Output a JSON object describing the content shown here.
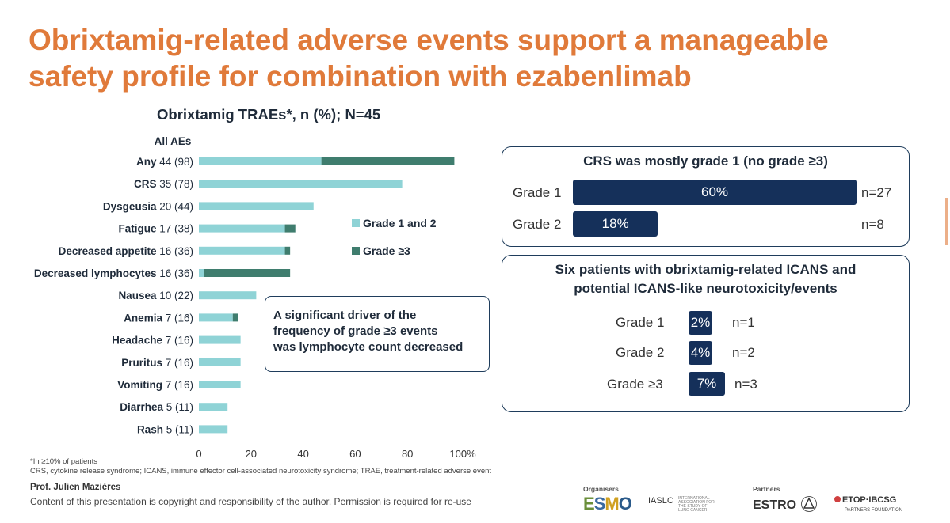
{
  "slide": {
    "title": "Obrixtamig-related adverse events support a manageable safety profile for combination with ezabenlimab"
  },
  "chart_data": {
    "type": "bar",
    "orientation": "horizontal",
    "stacked": true,
    "title": "Obrixtamig TRAEs*, n (%); N=45",
    "column_header": "All AEs",
    "categories": [
      "Any",
      "CRS",
      "Dysgeusia",
      "Fatigue",
      "Decreased appetite",
      "Decreased lymphocytes",
      "Nausea",
      "Anemia",
      "Headache",
      "Pruritus",
      "Vomiting",
      "Diarrhea",
      "Rash"
    ],
    "category_counts": [
      "44 (98)",
      "35 (78)",
      "20 (44)",
      "17 (38)",
      "16 (36)",
      "16 (36)",
      "10 (22)",
      "7 (16)",
      "7 (16)",
      "7 (16)",
      "7 (16)",
      "5 (11)",
      "5 (11)"
    ],
    "series": [
      {
        "name": "Grade 1 and 2",
        "color": "#8fd3d6",
        "values": [
          47,
          78,
          44,
          33,
          33,
          2,
          22,
          13,
          16,
          16,
          16,
          11,
          11
        ]
      },
      {
        "name": "Grade ≥3",
        "color": "#3f7d6e",
        "values": [
          51,
          0,
          0,
          4,
          2,
          33,
          0,
          2,
          0,
          0,
          0,
          0,
          0
        ]
      }
    ],
    "x_ticks": [
      "0",
      "20",
      "40",
      "60",
      "80",
      "100%"
    ],
    "xlim": [
      0,
      100
    ]
  },
  "driver_box": {
    "lines": [
      "A significant driver of the",
      "frequency of grade ≥3 events",
      "was lymphocyte count decreased"
    ]
  },
  "crs_panel": {
    "title": "CRS was mostly grade 1 (no grade ≥3)",
    "rows": [
      {
        "label": "Grade 1",
        "percent": 60,
        "percent_text": "60%",
        "n": "n=27"
      },
      {
        "label": "Grade 2",
        "percent": 18,
        "percent_text": "18%",
        "n": "n=8"
      }
    ]
  },
  "icans_panel": {
    "title_line1": "Six patients with obrixtamig-related ICANS and",
    "title_line2": "potential ICANS-like neurotoxicity/events",
    "rows": [
      {
        "label": "Grade 1",
        "percent": 2,
        "percent_text": "2%",
        "n": "n=1"
      },
      {
        "label": "Grade 2",
        "percent": 4,
        "percent_text": "4%",
        "n": "n=2"
      },
      {
        "label": "Grade ≥3",
        "percent": 7,
        "percent_text": "7%",
        "n": "n=3"
      }
    ]
  },
  "footnotes": {
    "line1": "*In ≥10% of patients",
    "line2": "CRS, cytokine release syndrome; ICANS, immune effector cell-associated neurotoxicity syndrome; TRAE, treatment-related adverse event"
  },
  "footer": {
    "presenter": "Prof. Julien Mazières",
    "copyright": "Content of this presentation is copyright and responsibility of the author. Permission is required for re-use",
    "organisers_label": "Organisers",
    "partners_label": "Partners",
    "esmo": "ESMO",
    "iaslc": "IASLC",
    "iaslc_sub": "INTERNATIONAL ASSOCIATION FOR THE STUDY OF LUNG CANCER",
    "estro": "ESTRO",
    "etop": "ETOP·IBCSG",
    "etop_sub": "PARTNERS FOUNDATION"
  },
  "colors": {
    "accent": "#e07a3a",
    "navy": "#15305a",
    "grade12": "#8fd3d6",
    "grade3": "#3f7d6e"
  }
}
